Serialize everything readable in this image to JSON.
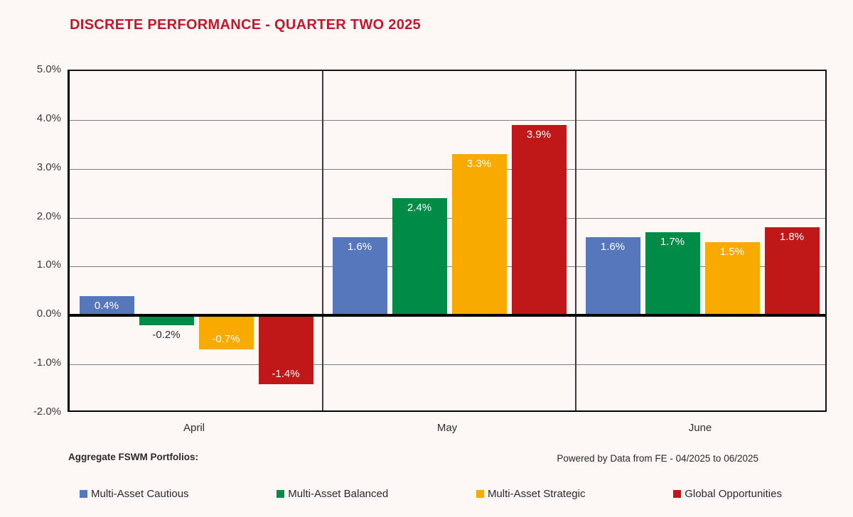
{
  "title": "DISCRETE PERFORMANCE - QUARTER TWO 2025",
  "chart_data": {
    "type": "bar",
    "title": "DISCRETE PERFORMANCE - QUARTER TWO 2025",
    "categories": [
      "April",
      "May",
      "June"
    ],
    "series": [
      {
        "name": "Multi-Asset Cautious",
        "color": "#5777BC",
        "values": [
          0.4,
          1.6,
          1.6
        ]
      },
      {
        "name": "Multi-Asset Balanced",
        "color": "#008C46",
        "values": [
          -0.2,
          2.4,
          1.7
        ]
      },
      {
        "name": "Multi-Asset Strategic",
        "color": "#F8AA00",
        "values": [
          -0.7,
          3.3,
          1.5
        ]
      },
      {
        "name": "Global Opportunities",
        "color": "#C01718",
        "values": [
          -1.4,
          3.9,
          1.8
        ]
      }
    ],
    "ylim": [
      -2,
      5
    ],
    "ytick_step": 1,
    "ytick_labels": [
      "5.0%",
      "4.0%",
      "3.0%",
      "2.0%",
      "1.0%",
      "0.0%",
      "-1.0%",
      "-2.0%"
    ],
    "bar_labels": {
      "April": [
        "0.4%",
        "-0.2%",
        "-0.7%",
        "-1.4%"
      ],
      "May": [
        "1.6%",
        "2.4%",
        "3.3%",
        "3.9%"
      ],
      "June": [
        "1.6%",
        "1.7%",
        "1.5%",
        "1.8%"
      ]
    },
    "grid": true,
    "legend_position": "bottom"
  },
  "footer": {
    "left": "Aggregate FSWM Portfolios:",
    "right": "Powered by Data from FE - 04/2025 to 06/2025"
  },
  "colors": {
    "background": "#FDF7F5",
    "title": "#C4172C",
    "axis_text": "#3A3A3A",
    "gridline": "#7E7E7E",
    "zero_line": "#000000",
    "divider": "#3C3C3C"
  }
}
